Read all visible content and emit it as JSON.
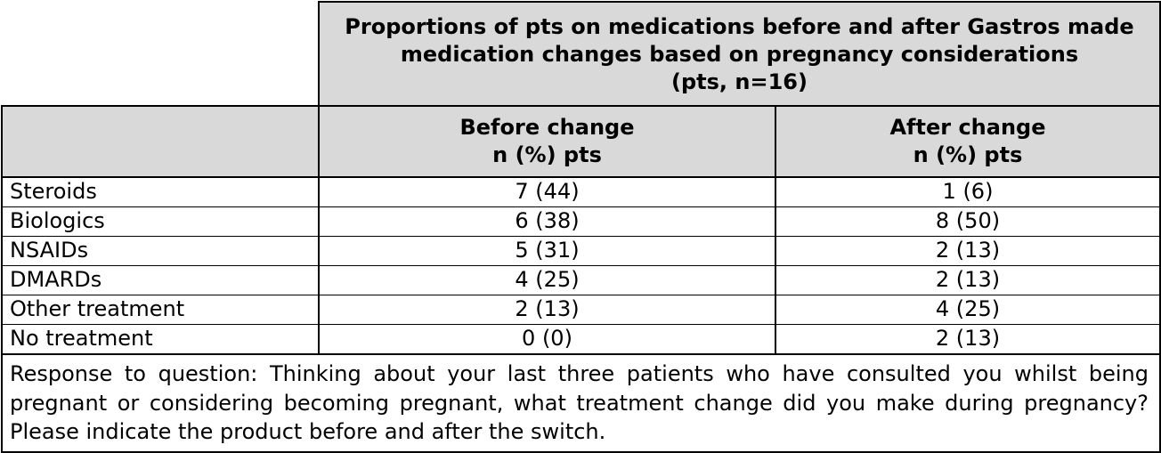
{
  "table": {
    "title_lines": [
      "Proportions of pts on medications before and after Gastros made",
      "medication changes based on pregnancy considerations",
      "(pts, n=16)"
    ],
    "columns": [
      {
        "line1": "Before change",
        "line2": "n (%) pts"
      },
      {
        "line1": "After change",
        "line2": "n (%) pts"
      }
    ],
    "rows": [
      {
        "label": "Steroids",
        "before": "7 (44)",
        "after": "1 (6)"
      },
      {
        "label": "Biologics",
        "before": "6 (38)",
        "after": "8 (50)"
      },
      {
        "label": "NSAIDs",
        "before": "5 (31)",
        "after": "2 (13)"
      },
      {
        "label": "DMARDs",
        "before": "4 (25)",
        "after": "2 (13)"
      },
      {
        "label": "Other treatment",
        "before": "2 (13)",
        "after": "4 (25)"
      },
      {
        "label": "No treatment",
        "before": "0 (0)",
        "after": "2 (13)"
      }
    ],
    "footnote": "Response to question: Thinking about your last three patients who have consulted you whilst being pregnant or considering becoming pregnant, what treatment change did you make during pregnancy? Please indicate the product before and after the switch.",
    "header_fill": "#d9d9d9"
  }
}
